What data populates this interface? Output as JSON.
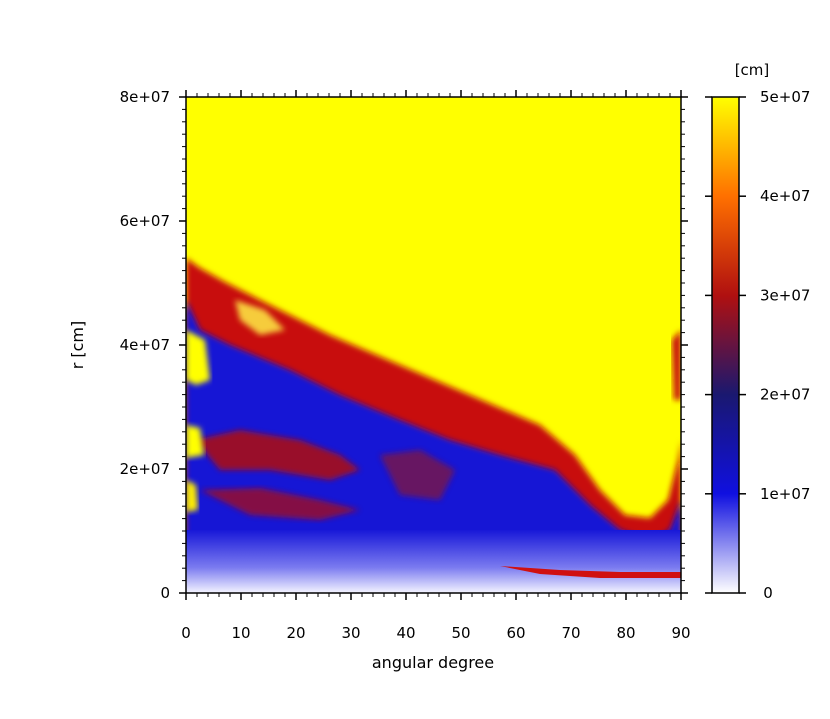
{
  "chart_data": {
    "type": "heatmap",
    "xlabel": "angular degree",
    "ylabel": "r [cm]",
    "xlim": [
      0,
      90
    ],
    "ylim": [
      0,
      80000000
    ],
    "x_ticks": [
      "0",
      "10",
      "20",
      "30",
      "40",
      "50",
      "60",
      "70",
      "80",
      "90"
    ],
    "y_ticks": [
      "0",
      "2e+07",
      "4e+07",
      "6e+07",
      "8e+07"
    ],
    "colorbar": {
      "label": "[cm]",
      "range": [
        0,
        50000000
      ],
      "ticks": [
        "0",
        "1e+07",
        "2e+07",
        "3e+07",
        "4e+07",
        "5e+07"
      ],
      "colors": {
        "low": "#ffffff",
        "mid_low": "#1010e0",
        "mid": "#1a1870",
        "mid_high": "#b01010",
        "high": "#ffff00"
      }
    },
    "regions": [
      {
        "description_value": "upper region saturated",
        "value": 50000000,
        "color": "#ffff00"
      },
      {
        "description_value": "shock front band",
        "value": 30000000,
        "color": "#c01010"
      },
      {
        "description_value": "inner region",
        "value": 15000000,
        "color": "#1515d5"
      },
      {
        "description_value": "core",
        "value": 0,
        "color": "#e8e8ff"
      }
    ],
    "shock_front_r": {
      "angles": [
        0,
        5,
        10,
        20,
        30,
        40,
        50,
        60,
        70,
        75,
        80,
        85,
        88,
        90
      ],
      "r_cm": [
        52000000,
        51000000,
        47000000,
        42000000,
        37000000,
        33000000,
        29000000,
        26000000,
        22000000,
        16000000,
        11000000,
        10000000,
        20000000,
        40000000
      ]
    }
  }
}
